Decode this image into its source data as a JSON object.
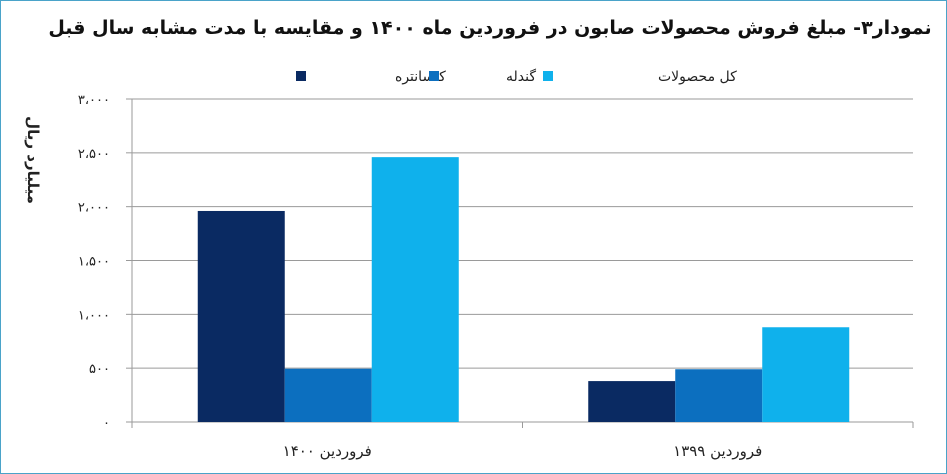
{
  "chart_data": {
    "type": "bar",
    "title": "نمودار۳- مبلغ فروش محصولات صابون در فروردین ماه ۱۴۰۰ و مقایسه با مدت مشابه سال قبل",
    "ylabel": "میلیارد ریال",
    "xlabel": "",
    "categories": [
      "فروردین ۱۴۰۰",
      "فروردین ۱۳۹۹"
    ],
    "series": [
      {
        "name": "کنسانتره",
        "color": "#0a2a62",
        "values": [
          1960,
          380
        ]
      },
      {
        "name": "گندله",
        "color": "#0c6fbf",
        "values": [
          495,
          490
        ]
      },
      {
        "name": "کل محصولات",
        "color": "#0fb1ec",
        "values": [
          2460,
          880
        ]
      }
    ],
    "ylim": [
      0,
      3000
    ],
    "yticks": [
      0,
      500,
      1000,
      1500,
      2000,
      2500,
      3000
    ],
    "ytick_labels": [
      "۰",
      "۵۰۰",
      "۱،۰۰۰",
      "۱،۵۰۰",
      "۲،۰۰۰",
      "۲،۵۰۰",
      "۳،۰۰۰"
    ],
    "grid": true,
    "legend_position": "top"
  }
}
